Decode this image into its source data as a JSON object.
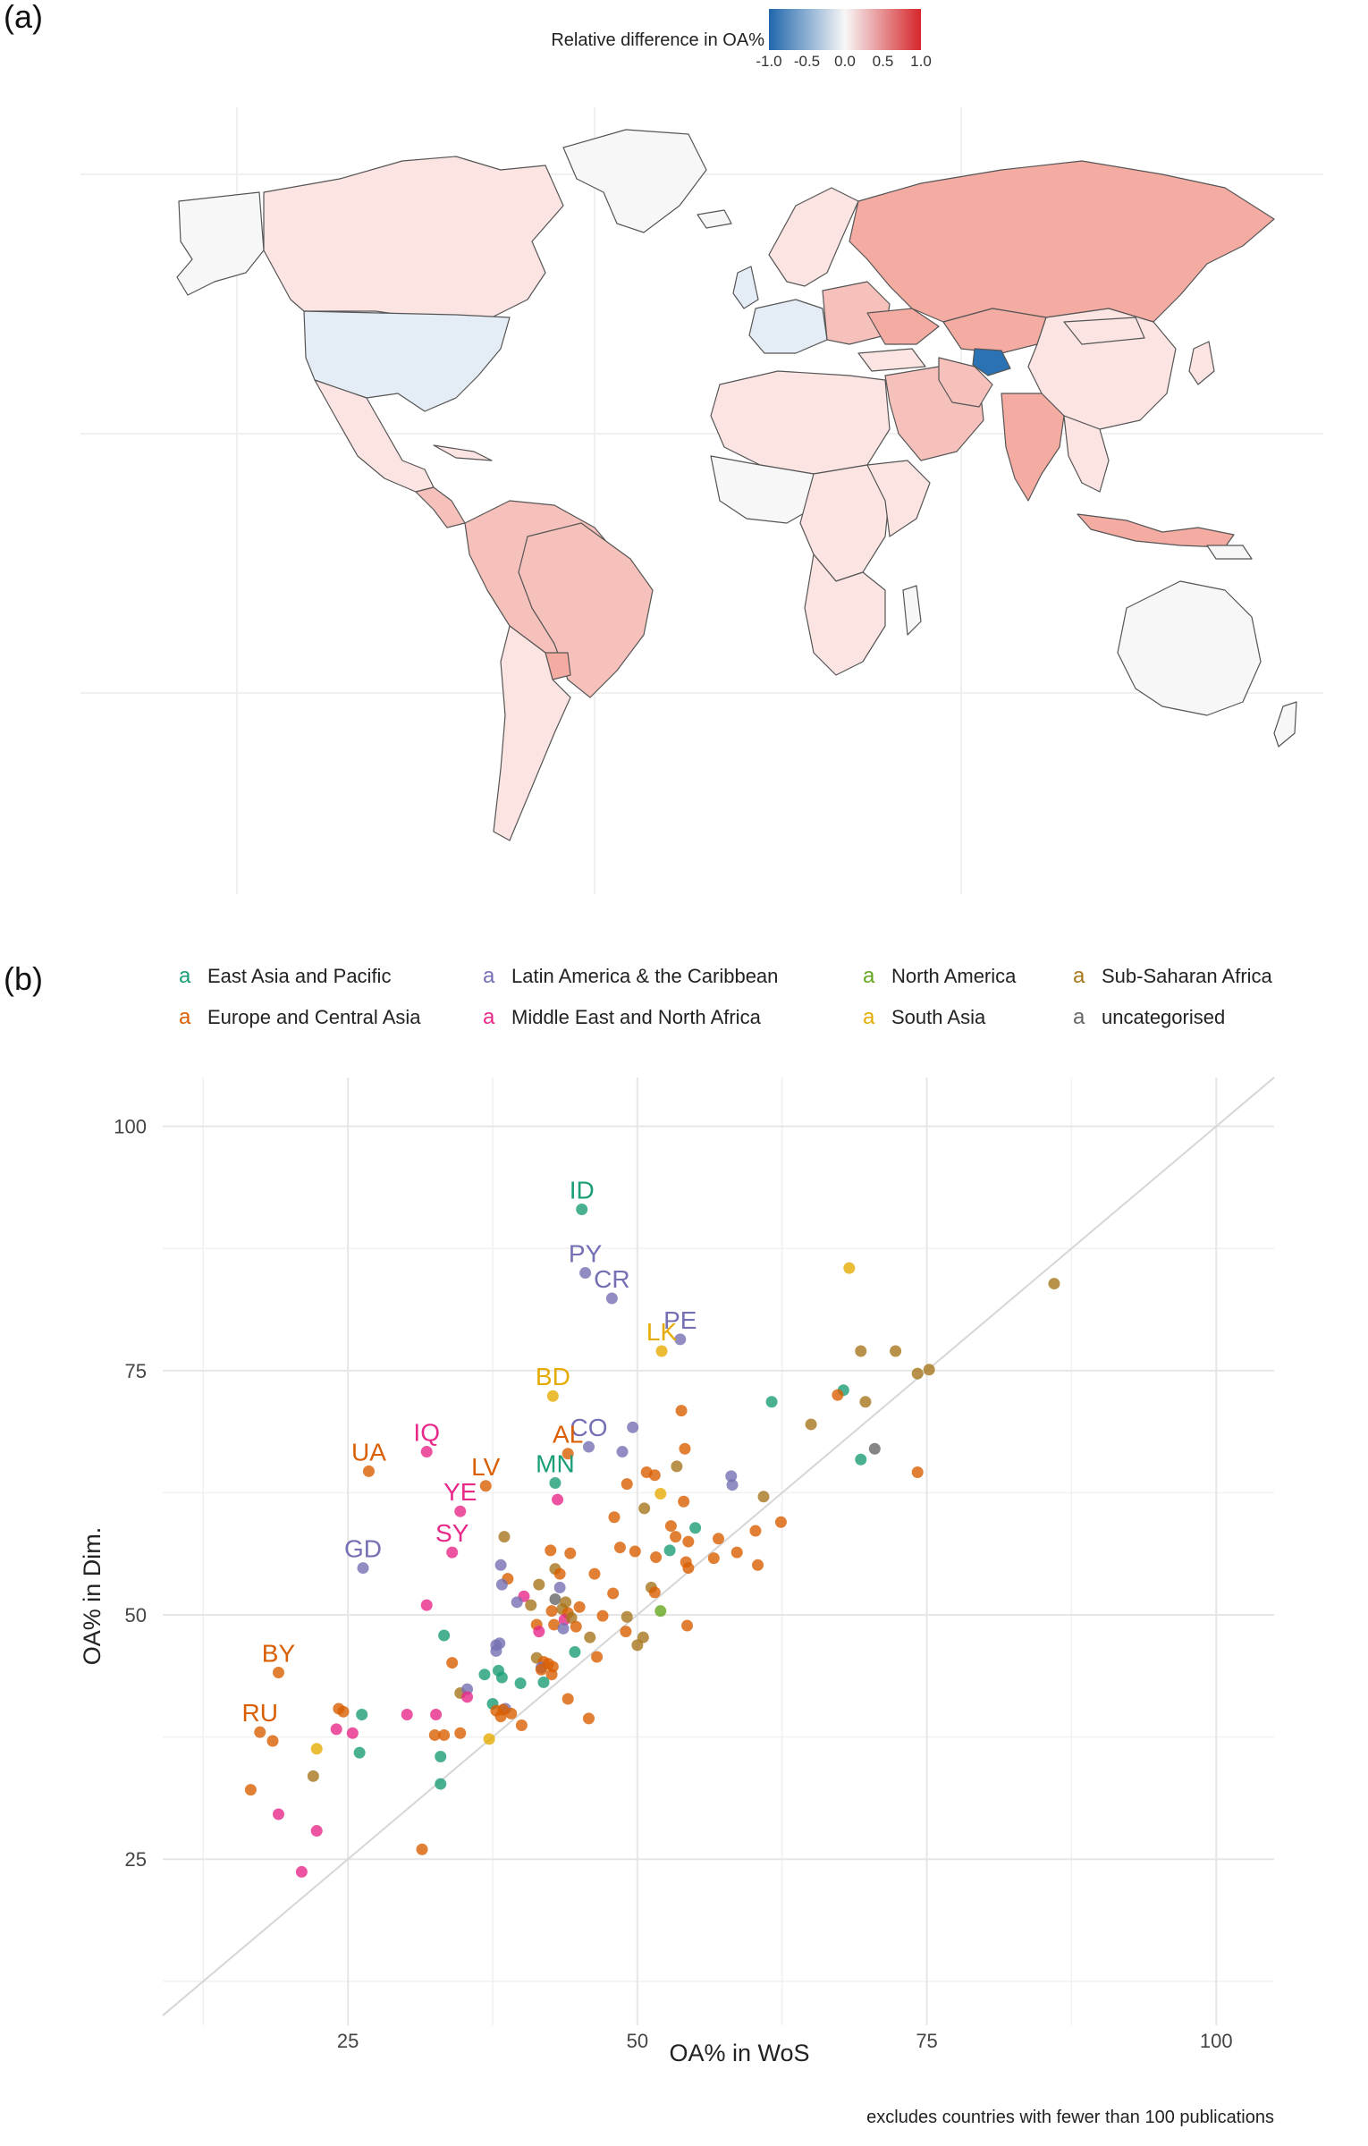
{
  "panel_a": {
    "label": "(a)",
    "colorbar": {
      "title": "Relative difference in OA%",
      "ticks": [
        "-1.0",
        "-0.5",
        "0.0",
        "0.5",
        "1.0"
      ],
      "colors": [
        "#2166ac",
        "#f7f7f7",
        "#d6262b"
      ]
    },
    "map_colors": {
      "neutral": "#f7f7f7",
      "light_red": "#fbe4e2",
      "mid_red": "#f6c1bb",
      "strong_red": "#f4aba2",
      "light_blue": "#e4ecf5",
      "strong_blue": "#2b72b5",
      "border": "#555555"
    }
  },
  "panel_b": {
    "label": "(b)",
    "caption": "excludes countries with fewer than 100 publications",
    "legend": [
      {
        "name": "East Asia and Pacific",
        "color": "#1b9e77"
      },
      {
        "name": "Latin America & the Caribbean",
        "color": "#7570b3"
      },
      {
        "name": "North America",
        "color": "#66a61e"
      },
      {
        "name": "Sub-Saharan Africa",
        "color": "#a6761d"
      },
      {
        "name": "Europe and Central Asia",
        "color": "#d95f02"
      },
      {
        "name": "Middle East and North Africa",
        "color": "#e7298a"
      },
      {
        "name": "South Asia",
        "color": "#e6ab02"
      },
      {
        "name": "uncategorised",
        "color": "#666666"
      }
    ],
    "legend_key_glyph": "a"
  },
  "chart_data": {
    "type": "scatter",
    "xlabel": "OA% in WoS",
    "ylabel": "OA% in Dim.",
    "xlim": [
      9,
      105
    ],
    "ylim": [
      8,
      105
    ],
    "xticks": [
      25,
      50,
      75,
      100
    ],
    "yticks": [
      25,
      50,
      75,
      100
    ],
    "grid": true,
    "reference_line": "y = x",
    "legend_position": "top",
    "labelled_points": [
      {
        "label": "ID",
        "x": 45.2,
        "y": 91.5,
        "group": 0
      },
      {
        "label": "PY",
        "x": 45.5,
        "y": 85.0,
        "group": 1
      },
      {
        "label": "CR",
        "x": 47.8,
        "y": 82.4,
        "group": 1
      },
      {
        "label": "PE",
        "x": 53.7,
        "y": 78.2,
        "group": 1
      },
      {
        "label": "LK",
        "x": 52.1,
        "y": 77.0,
        "group": 6
      },
      {
        "label": "BD",
        "x": 42.7,
        "y": 72.4,
        "group": 6
      },
      {
        "label": "CO",
        "x": 45.8,
        "y": 67.2,
        "group": 1
      },
      {
        "label": "AL",
        "x": 44.0,
        "y": 66.5,
        "group": 4
      },
      {
        "label": "MN",
        "x": 42.9,
        "y": 63.5,
        "group": 0
      },
      {
        "label": "IQ",
        "x": 31.8,
        "y": 66.7,
        "group": 5
      },
      {
        "label": "UA",
        "x": 26.8,
        "y": 64.7,
        "group": 4
      },
      {
        "label": "LV",
        "x": 36.9,
        "y": 63.2,
        "group": 4
      },
      {
        "label": "YE",
        "x": 34.7,
        "y": 60.6,
        "group": 5
      },
      {
        "label": "SY",
        "x": 34.0,
        "y": 56.4,
        "group": 5
      },
      {
        "label": "GD",
        "x": 26.3,
        "y": 54.8,
        "group": 1
      },
      {
        "label": "BY",
        "x": 19.0,
        "y": 44.1,
        "group": 4
      },
      {
        "label": "RU",
        "x": 17.4,
        "y": 38.0,
        "group": 4
      }
    ],
    "points": [
      {
        "x": 68.3,
        "y": 85.5,
        "group": 6
      },
      {
        "x": 86.0,
        "y": 83.9,
        "group": 3
      },
      {
        "x": 75.2,
        "y": 75.1,
        "group": 3
      },
      {
        "x": 74.2,
        "y": 74.7,
        "group": 3
      },
      {
        "x": 72.3,
        "y": 77.0,
        "group": 3
      },
      {
        "x": 69.3,
        "y": 77.0,
        "group": 3
      },
      {
        "x": 67.8,
        "y": 73.0,
        "group": 0
      },
      {
        "x": 67.3,
        "y": 72.5,
        "group": 4
      },
      {
        "x": 61.6,
        "y": 71.8,
        "group": 0
      },
      {
        "x": 69.7,
        "y": 71.8,
        "group": 3
      },
      {
        "x": 65.0,
        "y": 69.5,
        "group": 3
      },
      {
        "x": 70.5,
        "y": 67.0,
        "group": 7
      },
      {
        "x": 69.3,
        "y": 65.9,
        "group": 0
      },
      {
        "x": 74.2,
        "y": 64.6,
        "group": 4
      },
      {
        "x": 49.6,
        "y": 69.2,
        "group": 1
      },
      {
        "x": 53.8,
        "y": 70.9,
        "group": 4
      },
      {
        "x": 54.1,
        "y": 67.0,
        "group": 4
      },
      {
        "x": 48.7,
        "y": 66.7,
        "group": 1
      },
      {
        "x": 53.4,
        "y": 65.2,
        "group": 3
      },
      {
        "x": 51.5,
        "y": 64.3,
        "group": 4
      },
      {
        "x": 58.1,
        "y": 64.2,
        "group": 1
      },
      {
        "x": 58.2,
        "y": 63.3,
        "group": 1
      },
      {
        "x": 60.9,
        "y": 62.1,
        "group": 3
      },
      {
        "x": 50.8,
        "y": 64.6,
        "group": 4
      },
      {
        "x": 49.1,
        "y": 63.4,
        "group": 4
      },
      {
        "x": 52.0,
        "y": 62.4,
        "group": 6
      },
      {
        "x": 54.0,
        "y": 61.6,
        "group": 4
      },
      {
        "x": 43.1,
        "y": 61.8,
        "group": 5
      },
      {
        "x": 50.6,
        "y": 60.9,
        "group": 3
      },
      {
        "x": 48.0,
        "y": 60.0,
        "group": 4
      },
      {
        "x": 52.9,
        "y": 59.1,
        "group": 4
      },
      {
        "x": 55.0,
        "y": 58.9,
        "group": 0
      },
      {
        "x": 60.2,
        "y": 58.6,
        "group": 4
      },
      {
        "x": 57.0,
        "y": 57.8,
        "group": 4
      },
      {
        "x": 62.4,
        "y": 59.5,
        "group": 4
      },
      {
        "x": 53.3,
        "y": 58.0,
        "group": 4
      },
      {
        "x": 54.4,
        "y": 57.5,
        "group": 4
      },
      {
        "x": 38.5,
        "y": 58.0,
        "group": 3
      },
      {
        "x": 52.8,
        "y": 56.6,
        "group": 0
      },
      {
        "x": 48.5,
        "y": 56.9,
        "group": 4
      },
      {
        "x": 58.6,
        "y": 56.4,
        "group": 4
      },
      {
        "x": 49.8,
        "y": 56.5,
        "group": 4
      },
      {
        "x": 42.5,
        "y": 56.6,
        "group": 4
      },
      {
        "x": 44.2,
        "y": 56.3,
        "group": 4
      },
      {
        "x": 51.6,
        "y": 55.9,
        "group": 4
      },
      {
        "x": 56.6,
        "y": 55.8,
        "group": 4
      },
      {
        "x": 54.2,
        "y": 55.4,
        "group": 4
      },
      {
        "x": 60.4,
        "y": 55.1,
        "group": 4
      },
      {
        "x": 54.4,
        "y": 54.8,
        "group": 4
      },
      {
        "x": 38.2,
        "y": 55.1,
        "group": 1
      },
      {
        "x": 42.9,
        "y": 54.7,
        "group": 3
      },
      {
        "x": 43.3,
        "y": 54.2,
        "group": 4
      },
      {
        "x": 38.8,
        "y": 53.7,
        "group": 4
      },
      {
        "x": 46.3,
        "y": 54.2,
        "group": 4
      },
      {
        "x": 38.3,
        "y": 53.1,
        "group": 1
      },
      {
        "x": 41.5,
        "y": 53.1,
        "group": 3
      },
      {
        "x": 43.3,
        "y": 52.8,
        "group": 1
      },
      {
        "x": 51.2,
        "y": 52.8,
        "group": 3
      },
      {
        "x": 51.5,
        "y": 52.3,
        "group": 4
      },
      {
        "x": 47.9,
        "y": 52.2,
        "group": 4
      },
      {
        "x": 40.2,
        "y": 51.9,
        "group": 5
      },
      {
        "x": 39.6,
        "y": 51.3,
        "group": 1
      },
      {
        "x": 42.9,
        "y": 51.6,
        "group": 7
      },
      {
        "x": 43.8,
        "y": 51.3,
        "group": 3
      },
      {
        "x": 40.8,
        "y": 51.0,
        "group": 3
      },
      {
        "x": 31.8,
        "y": 51.0,
        "group": 5
      },
      {
        "x": 45.0,
        "y": 50.8,
        "group": 4
      },
      {
        "x": 43.5,
        "y": 50.6,
        "group": 3
      },
      {
        "x": 42.6,
        "y": 50.4,
        "group": 4
      },
      {
        "x": 44.0,
        "y": 50.2,
        "group": 4
      },
      {
        "x": 52.0,
        "y": 50.4,
        "group": 2
      },
      {
        "x": 43.7,
        "y": 49.5,
        "group": 5
      },
      {
        "x": 44.3,
        "y": 49.7,
        "group": 3
      },
      {
        "x": 47.0,
        "y": 49.9,
        "group": 4
      },
      {
        "x": 49.1,
        "y": 49.8,
        "group": 3
      },
      {
        "x": 41.3,
        "y": 49.0,
        "group": 4
      },
      {
        "x": 42.8,
        "y": 49.0,
        "group": 4
      },
      {
        "x": 44.7,
        "y": 48.8,
        "group": 4
      },
      {
        "x": 54.3,
        "y": 48.9,
        "group": 4
      },
      {
        "x": 41.5,
        "y": 48.3,
        "group": 5
      },
      {
        "x": 43.6,
        "y": 48.6,
        "group": 1
      },
      {
        "x": 49.0,
        "y": 48.3,
        "group": 4
      },
      {
        "x": 45.9,
        "y": 47.7,
        "group": 3
      },
      {
        "x": 50.5,
        "y": 47.7,
        "group": 3
      },
      {
        "x": 33.3,
        "y": 47.9,
        "group": 0
      },
      {
        "x": 38.1,
        "y": 47.1,
        "group": 1
      },
      {
        "x": 37.8,
        "y": 46.9,
        "group": 1
      },
      {
        "x": 50.0,
        "y": 46.9,
        "group": 3
      },
      {
        "x": 37.8,
        "y": 46.3,
        "group": 1
      },
      {
        "x": 44.6,
        "y": 46.2,
        "group": 0
      },
      {
        "x": 46.5,
        "y": 45.7,
        "group": 4
      },
      {
        "x": 41.3,
        "y": 45.6,
        "group": 3
      },
      {
        "x": 41.9,
        "y": 45.2,
        "group": 4
      },
      {
        "x": 34.0,
        "y": 45.1,
        "group": 4
      },
      {
        "x": 41.7,
        "y": 44.6,
        "group": 1
      },
      {
        "x": 42.3,
        "y": 45.0,
        "group": 4
      },
      {
        "x": 42.7,
        "y": 44.7,
        "group": 4
      },
      {
        "x": 38.0,
        "y": 44.3,
        "group": 0
      },
      {
        "x": 41.7,
        "y": 44.4,
        "group": 4
      },
      {
        "x": 36.8,
        "y": 43.9,
        "group": 0
      },
      {
        "x": 42.6,
        "y": 43.9,
        "group": 4
      },
      {
        "x": 38.3,
        "y": 43.6,
        "group": 0
      },
      {
        "x": 39.9,
        "y": 43.0,
        "group": 0
      },
      {
        "x": 41.9,
        "y": 43.1,
        "group": 0
      },
      {
        "x": 34.7,
        "y": 42.0,
        "group": 3
      },
      {
        "x": 35.3,
        "y": 42.4,
        "group": 1
      },
      {
        "x": 35.3,
        "y": 41.6,
        "group": 5
      },
      {
        "x": 44.0,
        "y": 41.4,
        "group": 4
      },
      {
        "x": 37.5,
        "y": 40.9,
        "group": 0
      },
      {
        "x": 38.6,
        "y": 40.4,
        "group": 1
      },
      {
        "x": 38.4,
        "y": 40.3,
        "group": 4
      },
      {
        "x": 37.8,
        "y": 40.2,
        "group": 4
      },
      {
        "x": 39.1,
        "y": 39.9,
        "group": 4
      },
      {
        "x": 32.6,
        "y": 39.8,
        "group": 5
      },
      {
        "x": 30.1,
        "y": 39.8,
        "group": 5
      },
      {
        "x": 38.2,
        "y": 39.6,
        "group": 4
      },
      {
        "x": 24.2,
        "y": 40.4,
        "group": 4
      },
      {
        "x": 24.6,
        "y": 40.1,
        "group": 4
      },
      {
        "x": 26.2,
        "y": 39.8,
        "group": 0
      },
      {
        "x": 45.8,
        "y": 39.4,
        "group": 4
      },
      {
        "x": 40.0,
        "y": 38.7,
        "group": 4
      },
      {
        "x": 24.0,
        "y": 38.3,
        "group": 5
      },
      {
        "x": 25.4,
        "y": 37.9,
        "group": 5
      },
      {
        "x": 34.7,
        "y": 37.9,
        "group": 4
      },
      {
        "x": 33.3,
        "y": 37.7,
        "group": 4
      },
      {
        "x": 32.5,
        "y": 37.7,
        "group": 4
      },
      {
        "x": 37.2,
        "y": 37.3,
        "group": 6
      },
      {
        "x": 18.5,
        "y": 37.1,
        "group": 4
      },
      {
        "x": 22.3,
        "y": 36.3,
        "group": 6
      },
      {
        "x": 26.0,
        "y": 35.9,
        "group": 0
      },
      {
        "x": 33.0,
        "y": 35.5,
        "group": 0
      },
      {
        "x": 22.0,
        "y": 33.5,
        "group": 3
      },
      {
        "x": 33.0,
        "y": 32.7,
        "group": 0
      },
      {
        "x": 16.6,
        "y": 32.1,
        "group": 4
      },
      {
        "x": 19.0,
        "y": 29.6,
        "group": 5
      },
      {
        "x": 22.3,
        "y": 27.9,
        "group": 5
      },
      {
        "x": 31.4,
        "y": 26.0,
        "group": 4
      },
      {
        "x": 21.0,
        "y": 23.7,
        "group": 5
      }
    ]
  }
}
